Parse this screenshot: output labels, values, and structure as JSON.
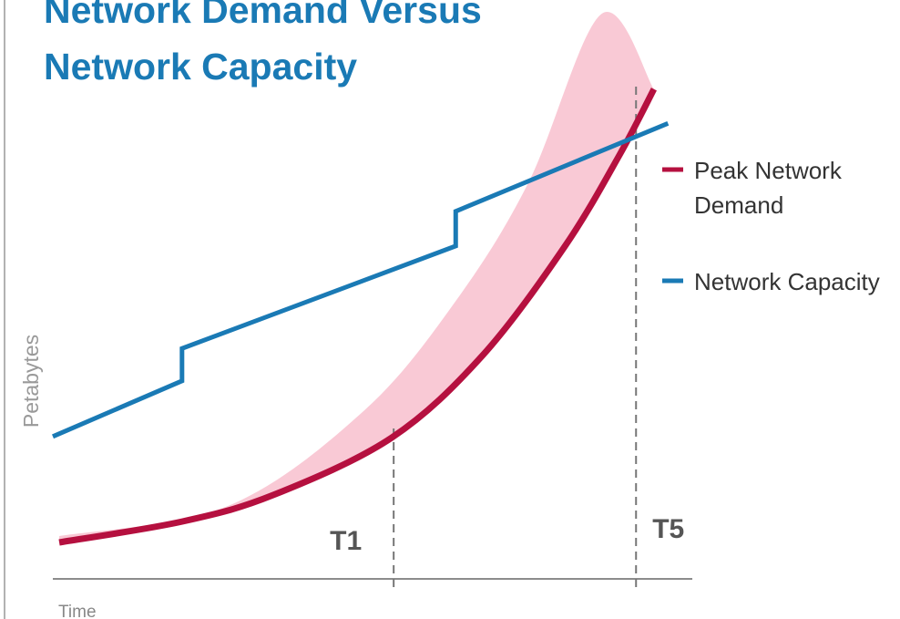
{
  "chart_data": {
    "type": "line",
    "title": "Network Demand Versus Network Capacity",
    "ylabel": "Petabytes",
    "xlabel": "Time",
    "xlim": [
      0,
      100
    ],
    "ylim": [
      0,
      100
    ],
    "series": [
      {
        "name": "Peak Network Demand",
        "color": "#b5103f",
        "smooth": true,
        "x": [
          1.0,
          20.2,
          34.5,
          53.0,
          67.2,
          80.1,
          88.6,
          94.0
        ],
        "values": [
          6.3,
          9.9,
          14.5,
          24.4,
          38.6,
          57.5,
          73.2,
          84.6
        ]
      },
      {
        "name": "Network Capacity",
        "color": "#1a7ab5",
        "smooth": false,
        "x": [
          0,
          20.2,
          20.2,
          63.0,
          63.0,
          96.2
        ],
        "values": [
          24.6,
          34.2,
          39.8,
          57.5,
          63.5,
          78.7
        ]
      }
    ],
    "band": {
      "color": "#f9c9d5",
      "x": [
        1.0,
        27.4,
        48.7,
        63.0,
        74.4,
        85.8,
        94.0
      ],
      "upper": [
        7.4,
        12.6,
        29.1,
        48.0,
        68.5,
        97.6,
        84.6
      ]
    },
    "annotations": [
      {
        "text": "T1",
        "x": 53.3
      },
      {
        "text": "T5",
        "x": 91.2
      }
    ]
  }
}
